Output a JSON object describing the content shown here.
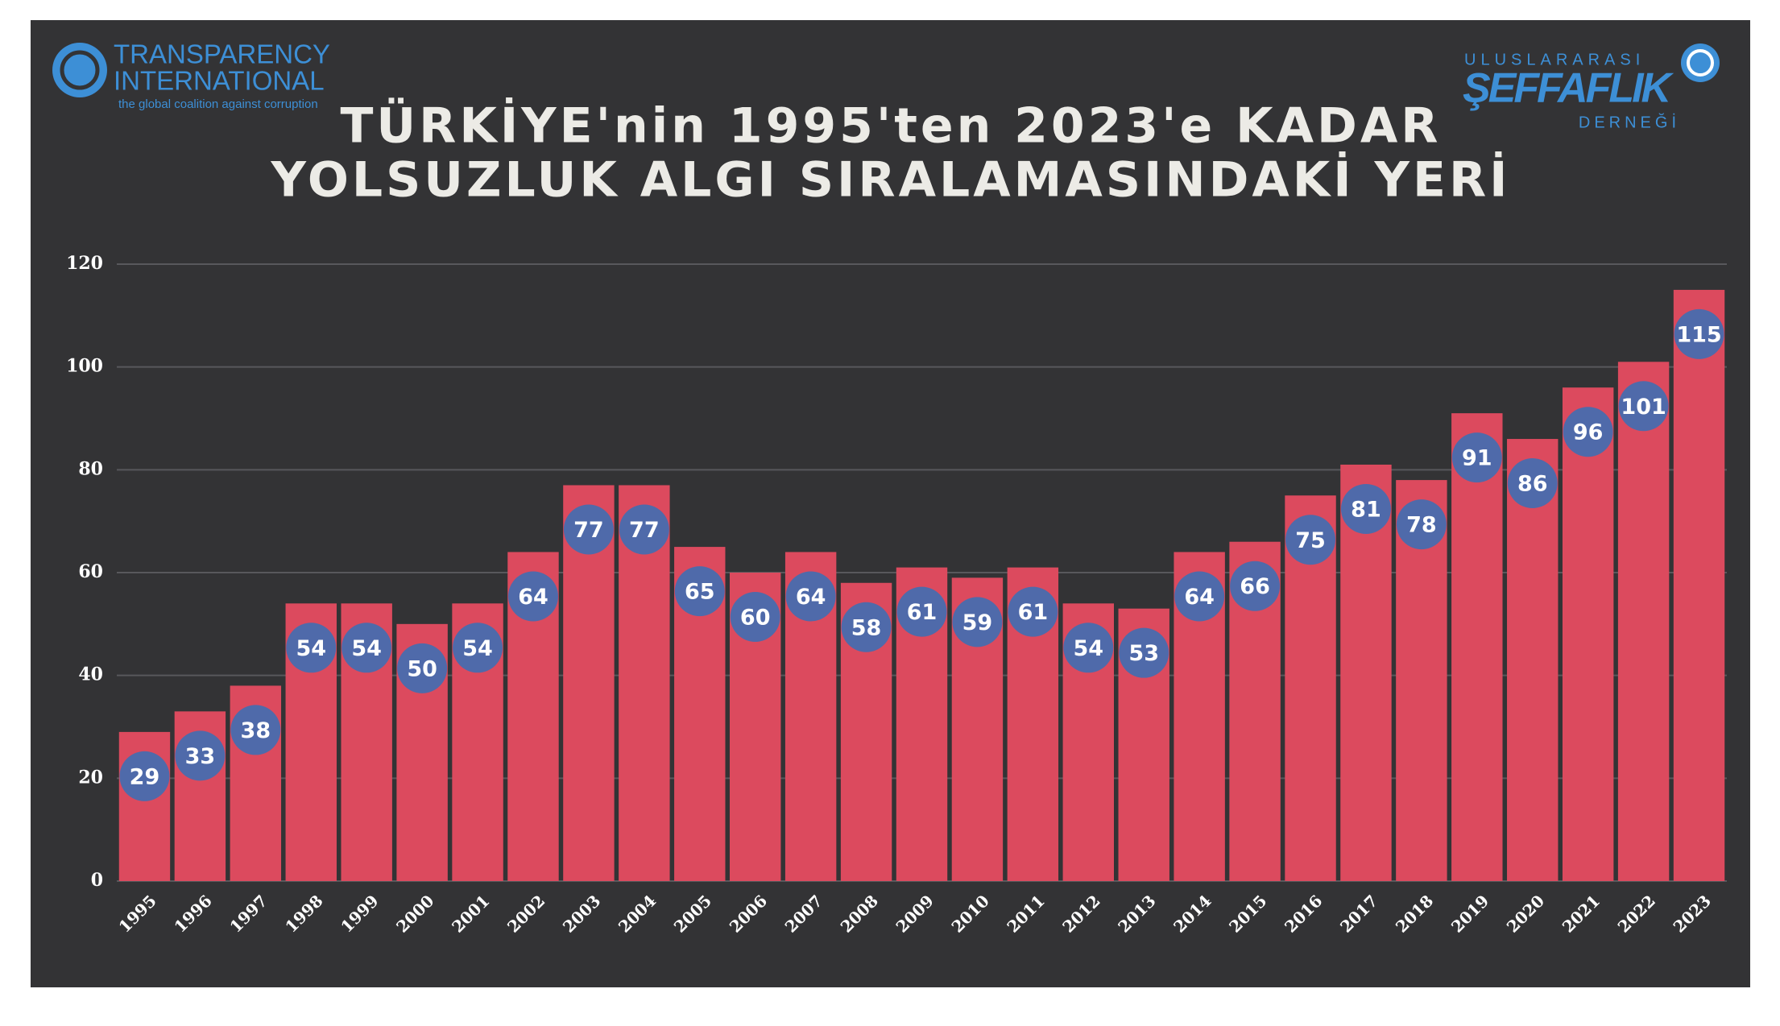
{
  "logo_left": {
    "line1": "TRANSPARENCY",
    "line2": "INTERNATIONAL",
    "tagline": "the global coalition against corruption"
  },
  "logo_right": {
    "top": "ULUSLARARASI",
    "main": "ŞEFFAFLIK",
    "bottom": "DERNEĞİ"
  },
  "chart_data": {
    "type": "bar",
    "title": [
      "TÜRKİYE'nin 1995'ten 2023'e KADAR",
      "YOLSUZLUK ALGI SIRALAMASINDAKİ YERİ"
    ],
    "categories": [
      "1995",
      "1996",
      "1997",
      "1998",
      "1999",
      "2000",
      "2001",
      "2002",
      "2003",
      "2004",
      "2005",
      "2006",
      "2007",
      "2008",
      "2009",
      "2010",
      "2011",
      "2012",
      "2013",
      "2014",
      "2015",
      "2016",
      "2017",
      "2018",
      "2019",
      "2020",
      "2021",
      "2022",
      "2023"
    ],
    "values": [
      29,
      33,
      38,
      54,
      54,
      50,
      54,
      64,
      77,
      77,
      65,
      60,
      64,
      58,
      61,
      59,
      61,
      54,
      53,
      64,
      66,
      75,
      81,
      78,
      91,
      86,
      96,
      101,
      115
    ],
    "color": "#dc4a5e",
    "label_color": "#4f6aaa",
    "ylim": [
      0,
      120
    ],
    "yticks": [
      0,
      20,
      40,
      60,
      80,
      100,
      120
    ],
    "grid": true
  }
}
